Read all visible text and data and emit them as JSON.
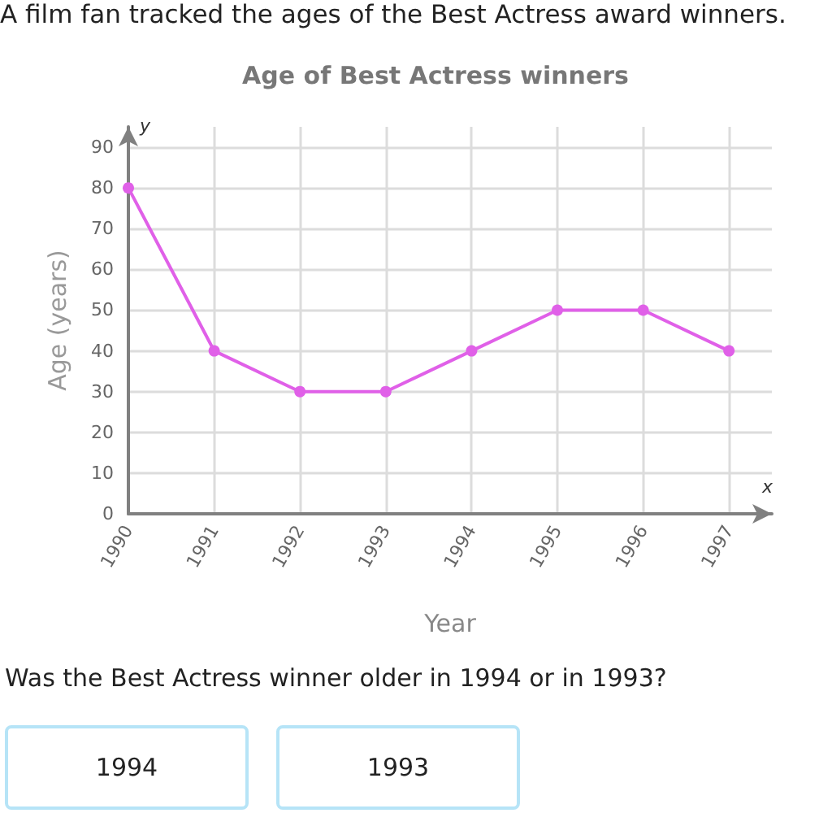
{
  "chart_data": {
    "type": "line",
    "title": "Age of Best Actress winners",
    "xlabel": "Year",
    "ylabel": "Age (years)",
    "x": [
      1990,
      1991,
      1992,
      1993,
      1994,
      1995,
      1996,
      1997
    ],
    "values": [
      80,
      40,
      30,
      30,
      40,
      50,
      50,
      40
    ],
    "color": "#e060e8",
    "xlim": [
      1990,
      1997.5
    ],
    "xticks": [
      1990,
      1991,
      1992,
      1993,
      1994,
      1995,
      1996,
      1997
    ],
    "ylim": [
      0,
      95
    ],
    "yticks": [
      0,
      10,
      20,
      30,
      40,
      50,
      60,
      70,
      80,
      90
    ],
    "grid": true,
    "marker": "circle",
    "line_style": "solid",
    "annotations": [
      "A film fan tracked the ages of the Best Actress award winners.",
      "y",
      "x",
      "Was the Best Actress winner older in 1994 or in 1993?",
      "1994",
      "1993"
    ]
  }
}
